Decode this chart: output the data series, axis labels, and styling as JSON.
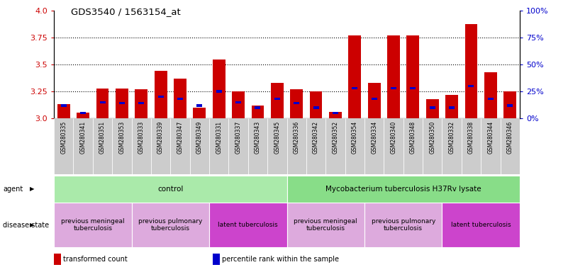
{
  "title": "GDS3540 / 1563154_at",
  "samples": [
    "GSM280335",
    "GSM280341",
    "GSM280351",
    "GSM280353",
    "GSM280333",
    "GSM280339",
    "GSM280347",
    "GSM280349",
    "GSM280331",
    "GSM280337",
    "GSM280343",
    "GSM280345",
    "GSM280336",
    "GSM280342",
    "GSM280352",
    "GSM280354",
    "GSM280334",
    "GSM280340",
    "GSM280348",
    "GSM280350",
    "GSM280332",
    "GSM280338",
    "GSM280344",
    "GSM280346"
  ],
  "transformed_count": [
    3.13,
    3.05,
    3.28,
    3.28,
    3.27,
    3.44,
    3.37,
    3.1,
    3.55,
    3.25,
    3.12,
    3.33,
    3.27,
    3.25,
    3.06,
    3.77,
    3.33,
    3.77,
    3.77,
    3.18,
    3.22,
    3.88,
    3.43,
    3.25
  ],
  "percentile_rank": [
    12,
    5,
    15,
    14,
    14,
    20,
    18,
    12,
    25,
    15,
    10,
    18,
    14,
    10,
    5,
    28,
    18,
    28,
    28,
    10,
    10,
    30,
    18,
    12
  ],
  "ylim_left": [
    3.0,
    4.0
  ],
  "yticks_left": [
    3.0,
    3.25,
    3.5,
    3.75,
    4.0
  ],
  "ytick_labels_right": [
    "0%",
    "25%",
    "50%",
    "75%",
    "100%"
  ],
  "bar_color": "#cc0000",
  "percentile_color": "#0000cc",
  "bg_color": "#ffffff",
  "agent_groups": [
    {
      "label": "control",
      "start": 0,
      "end": 12,
      "color": "#aaeaaa"
    },
    {
      "label": "Mycobacterium tuberculosis H37Rv lysate",
      "start": 12,
      "end": 24,
      "color": "#88dd88"
    }
  ],
  "disease_groups": [
    {
      "label": "previous meningeal\ntuberculosis",
      "start": 0,
      "end": 4,
      "color": "#ddaadd"
    },
    {
      "label": "previous pulmonary\ntuberculosis",
      "start": 4,
      "end": 8,
      "color": "#ddaadd"
    },
    {
      "label": "latent tuberculosis",
      "start": 8,
      "end": 12,
      "color": "#cc44cc"
    },
    {
      "label": "previous meningeal\ntuberculosis",
      "start": 12,
      "end": 16,
      "color": "#ddaadd"
    },
    {
      "label": "previous pulmonary\ntuberculosis",
      "start": 16,
      "end": 20,
      "color": "#ddaadd"
    },
    {
      "label": "latent tuberculosis",
      "start": 20,
      "end": 24,
      "color": "#cc44cc"
    }
  ],
  "legend_items": [
    {
      "label": "transformed count",
      "color": "#cc0000"
    },
    {
      "label": "percentile rank within the sample",
      "color": "#0000cc"
    }
  ],
  "tick_color_left": "#cc0000",
  "tick_color_right": "#0000cc",
  "xticklabel_bg": "#cccccc"
}
